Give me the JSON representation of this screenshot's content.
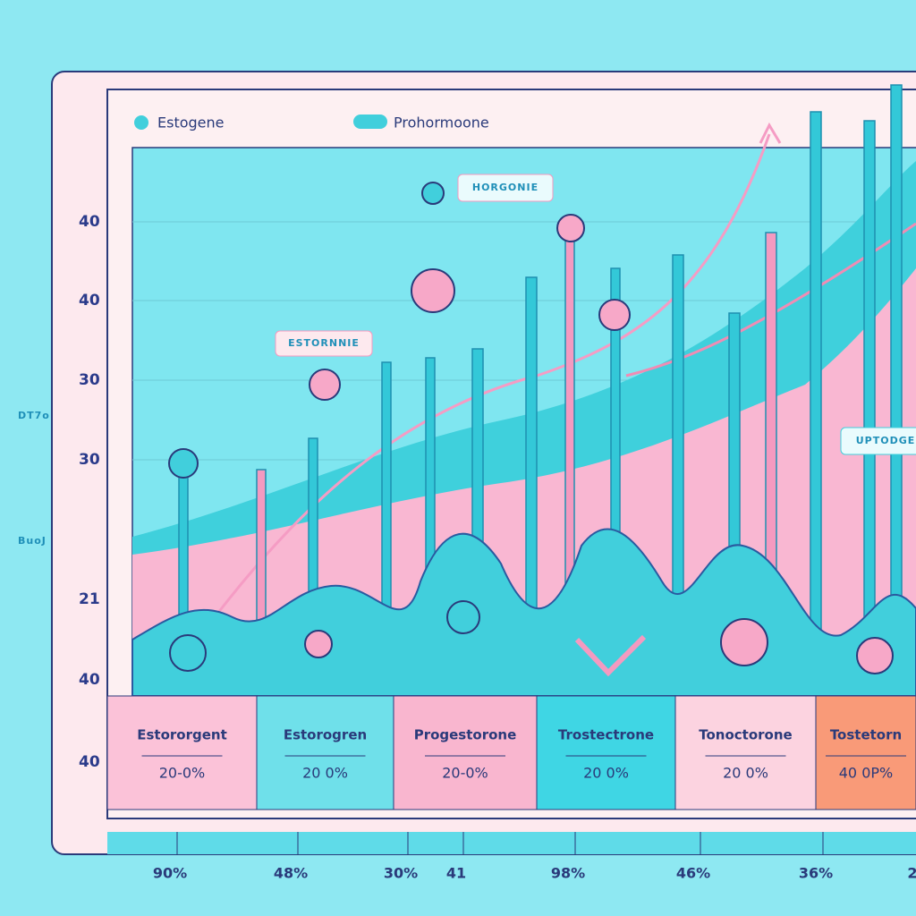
{
  "legend": [
    "Estogene",
    "Prohormoone"
  ],
  "axis_labels": [
    "40",
    "40",
    "30",
    "30",
    "21",
    "40",
    "40"
  ],
  "side_labels": [
    "DT7o",
    "BuoJ"
  ],
  "callouts": [
    "HORGONIE",
    "ESTORNNIE",
    "UPTODGE"
  ],
  "cards": [
    {
      "title": "Estororgent",
      "value": "20-0%"
    },
    {
      "title": "Estorogren",
      "value": "20 0%"
    },
    {
      "title": "Progestorone",
      "value": "20-0%"
    },
    {
      "title": "Trostectrone",
      "value": "20 0%"
    },
    {
      "title": "Tonoctorone",
      "value": "20 0%"
    },
    {
      "title": "Tostetorn",
      "value": "40 0P%"
    }
  ],
  "bottom_labels": [
    "90%",
    "48%",
    "30%",
    "41",
    "98%",
    "46%",
    "36%",
    "2"
  ]
}
